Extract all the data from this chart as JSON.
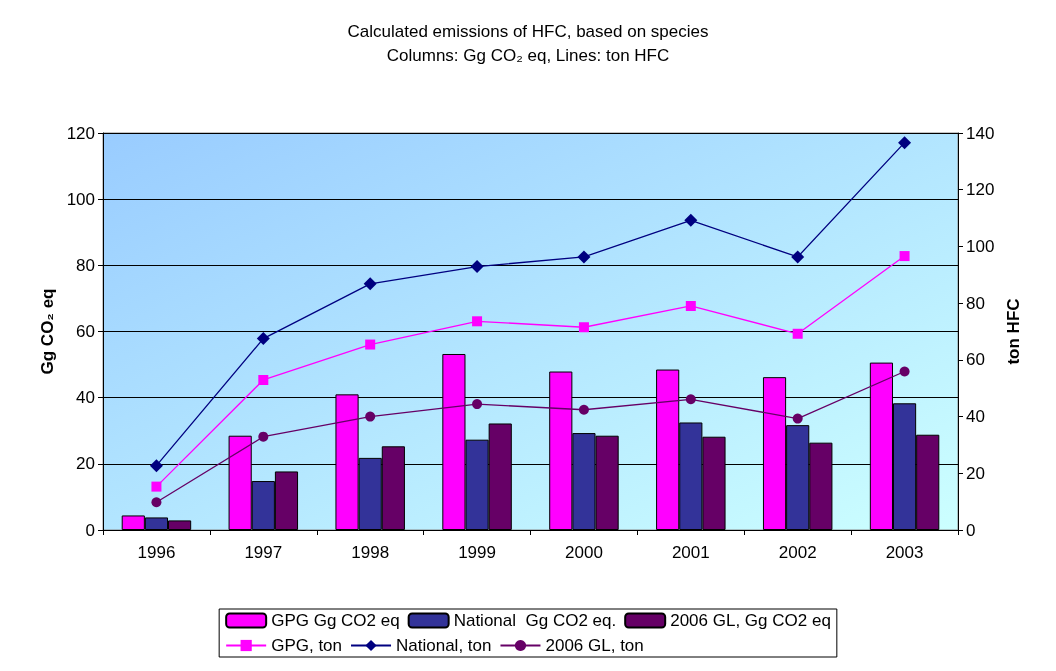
{
  "chart_data": {
    "type": "bar",
    "title": "Calculated emissions of HFC, based on species",
    "subtitle": "Columns: Gg CO₂ eq, Lines: ton HFC",
    "ylabel": "Gg CO₂ eq",
    "y2label": "ton HFC",
    "categories": [
      "1996",
      "1997",
      "1998",
      "1999",
      "2000",
      "2001",
      "2002",
      "2003"
    ],
    "series": [
      {
        "name": "GPG Gg CO2 eq",
        "color": "#ff00ff",
        "values": [
          4.4,
          28.5,
          41,
          53.2,
          47.9,
          48.5,
          46.2,
          50.6
        ]
      },
      {
        "name": "National  Gg CO2 eq.",
        "color": "#333399",
        "values": [
          3.8,
          14.8,
          21.8,
          27.3,
          29.3,
          32.5,
          31.7,
          38.3
        ]
      },
      {
        "name": "2006 GL, Gg CO2 eq",
        "color": "#660066",
        "values": [
          2.9,
          17.7,
          25.3,
          32.2,
          28.5,
          28.2,
          26.4,
          28.8
        ]
      },
      {
        "name": "GPG, ton",
        "type": "line",
        "axis": "y2",
        "marker": "square",
        "color": "#ff00ff",
        "values": [
          15.3,
          52.9,
          65.4,
          73.6,
          71.5,
          79,
          69.2,
          96.6
        ]
      },
      {
        "name": "National, ton",
        "type": "line",
        "axis": "y2",
        "marker": "diamond",
        "color": "#000080",
        "values": [
          22.7,
          67.5,
          86.8,
          92.9,
          96.3,
          109.2,
          96.3,
          136.6
        ]
      },
      {
        "name": "2006 GL, ton",
        "type": "line",
        "axis": "y2",
        "marker": "circle",
        "color": "#660066",
        "values": [
          9.8,
          32.9,
          40,
          44.4,
          42.4,
          46.1,
          39.3,
          55.9
        ]
      }
    ],
    "ylim": [
      0,
      120
    ],
    "yticks": [
      0,
      20,
      40,
      60,
      80,
      100,
      120
    ],
    "y2lim": [
      0,
      140
    ],
    "y2ticks": [
      0,
      20,
      40,
      60,
      80,
      100,
      120,
      140
    ],
    "grid": "y",
    "legend": "bottom"
  }
}
